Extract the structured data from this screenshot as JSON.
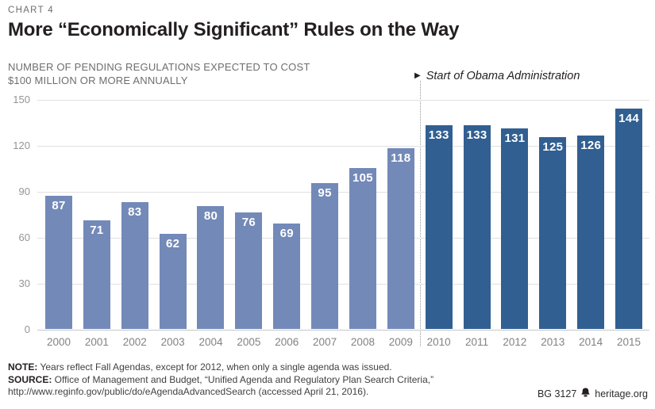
{
  "page": {
    "chart_label": "CHART 4",
    "title": "More “Economically Significant” Rules on the Way",
    "subtitle_line1": "NUMBER OF PENDING REGULATIONS EXPECTED TO COST",
    "subtitle_line2": "$100 MILLION OR MORE ANNUALLY"
  },
  "annotation": {
    "marker": "▶",
    "text": "Start of Obama Administration"
  },
  "chart_data": {
    "type": "bar",
    "categories": [
      "2000",
      "2001",
      "2002",
      "2003",
      "2004",
      "2005",
      "2006",
      "2007",
      "2008",
      "2009",
      "2010",
      "2011",
      "2012",
      "2013",
      "2014",
      "2015"
    ],
    "values": [
      87,
      71,
      83,
      62,
      80,
      76,
      69,
      95,
      105,
      118,
      133,
      133,
      131,
      125,
      126,
      144
    ],
    "yticks": [
      0,
      30,
      60,
      90,
      120,
      150
    ],
    "ylim": [
      0,
      150
    ],
    "grid": true,
    "legend": "none",
    "divider_after_index": 9,
    "series_colors": {
      "pre_2010": "#7389b8",
      "obama_era": "#315f91"
    },
    "value_label_color": "#ffffff"
  },
  "footer": {
    "note_label": "NOTE:",
    "note_text": " Years reflect Fall Agendas, except for 2012, when only a single agenda was issued.",
    "source_label": "SOURCE:",
    "source_text": " Office of Management and Budget, “Unified Agenda and Regulatory Plan Search Criteria,”",
    "source_line2": "http://www.reginfo.gov/public/do/eAgendaAdvancedSearch (accessed April 21, 2016).",
    "credit_id": "BG 3127",
    "credit_site": "heritage.org"
  },
  "colors": {
    "title": "#231f20",
    "label_gray": "#6d6e71",
    "axis_gray": "#939598",
    "year_gray": "#808285",
    "gridline": "#e0e0e1",
    "baseline": "#c6c7c9",
    "divider": "#97999c"
  }
}
